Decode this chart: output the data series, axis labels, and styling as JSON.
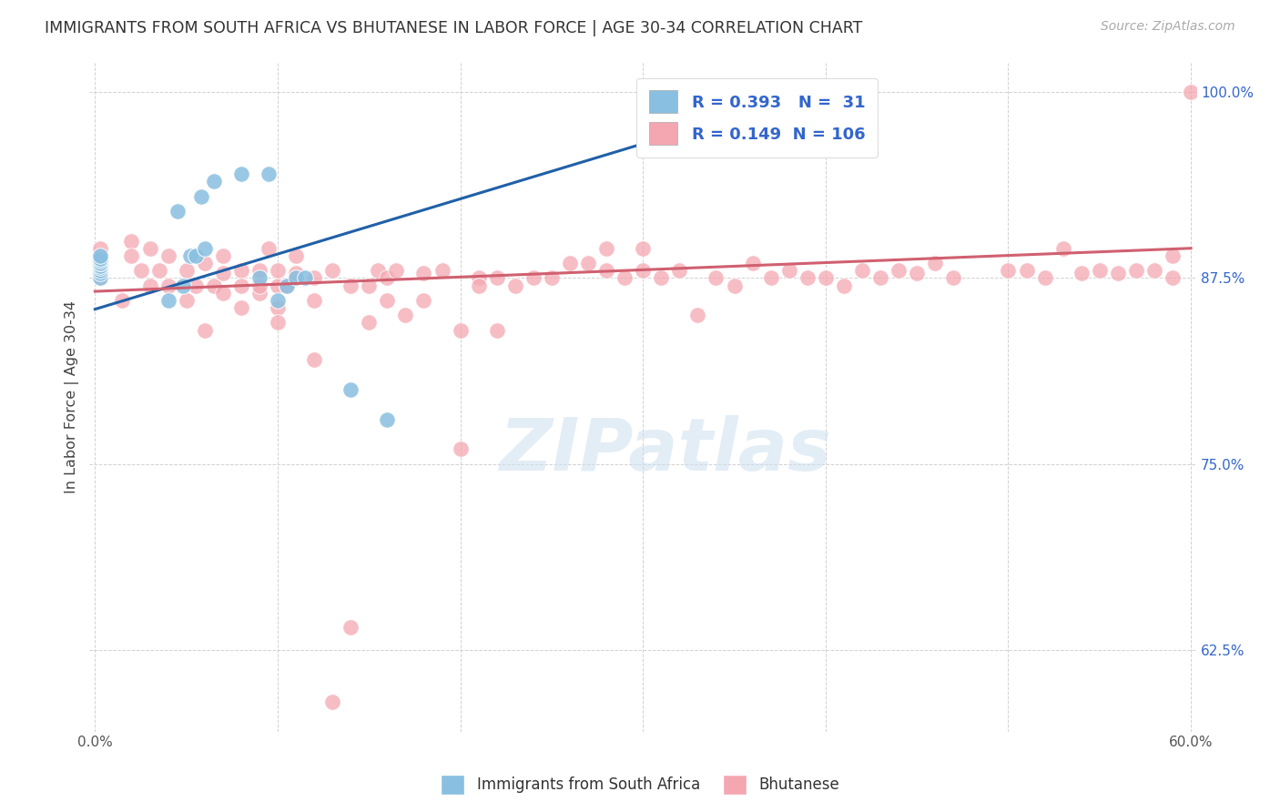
{
  "title": "IMMIGRANTS FROM SOUTH AFRICA VS BHUTANESE IN LABOR FORCE | AGE 30-34 CORRELATION CHART",
  "source_text": "Source: ZipAtlas.com",
  "ylabel": "In Labor Force | Age 30-34",
  "xlim": [
    0.0,
    0.6
  ],
  "ylim": [
    0.57,
    1.02
  ],
  "yticks": [
    0.625,
    0.75,
    0.875,
    1.0
  ],
  "ytick_labels": [
    "62.5%",
    "75.0%",
    "87.5%",
    "100.0%"
  ],
  "r_blue": 0.393,
  "n_blue": 31,
  "r_pink": 0.149,
  "n_pink": 106,
  "blue_color": "#89bfe0",
  "pink_color": "#f4a7b0",
  "trendline_blue_color": "#2060a8",
  "trendline_pink_color": "#d06070",
  "watermark": "ZIPatlas",
  "blue_x": [
    0.003,
    0.003,
    0.003,
    0.003,
    0.003,
    0.003,
    0.003,
    0.003,
    0.003,
    0.003,
    0.04,
    0.045,
    0.048,
    0.052,
    0.055,
    0.058,
    0.06,
    0.065,
    0.08,
    0.09,
    0.095,
    0.1,
    0.105,
    0.11,
    0.115,
    0.14,
    0.16,
    0.32,
    0.33,
    0.335,
    0.38
  ],
  "blue_y": [
    0.875,
    0.878,
    0.88,
    0.882,
    0.883,
    0.885,
    0.885,
    0.887,
    0.888,
    0.89,
    0.86,
    0.92,
    0.87,
    0.89,
    0.89,
    0.93,
    0.895,
    0.94,
    0.945,
    0.875,
    0.945,
    0.86,
    0.87,
    0.875,
    0.875,
    0.8,
    0.78,
    0.985,
    0.99,
    0.99,
    0.99
  ],
  "pink_x": [
    0.003,
    0.003,
    0.003,
    0.003,
    0.003,
    0.003,
    0.003,
    0.003,
    0.003,
    0.003,
    0.015,
    0.02,
    0.02,
    0.025,
    0.03,
    0.03,
    0.035,
    0.04,
    0.04,
    0.05,
    0.05,
    0.055,
    0.06,
    0.06,
    0.065,
    0.07,
    0.07,
    0.07,
    0.08,
    0.08,
    0.08,
    0.09,
    0.09,
    0.09,
    0.095,
    0.1,
    0.1,
    0.1,
    0.1,
    0.105,
    0.11,
    0.11,
    0.12,
    0.12,
    0.12,
    0.13,
    0.13,
    0.14,
    0.14,
    0.15,
    0.15,
    0.155,
    0.16,
    0.16,
    0.165,
    0.17,
    0.18,
    0.18,
    0.19,
    0.2,
    0.2,
    0.21,
    0.21,
    0.22,
    0.22,
    0.23,
    0.24,
    0.25,
    0.26,
    0.27,
    0.28,
    0.28,
    0.29,
    0.3,
    0.3,
    0.31,
    0.32,
    0.33,
    0.34,
    0.35,
    0.36,
    0.37,
    0.38,
    0.39,
    0.4,
    0.41,
    0.42,
    0.43,
    0.44,
    0.45,
    0.46,
    0.47,
    0.5,
    0.51,
    0.52,
    0.53,
    0.54,
    0.55,
    0.56,
    0.57,
    0.58,
    0.59,
    0.59,
    0.6
  ],
  "pink_y": [
    0.875,
    0.877,
    0.879,
    0.88,
    0.882,
    0.884,
    0.886,
    0.888,
    0.89,
    0.895,
    0.86,
    0.9,
    0.89,
    0.88,
    0.87,
    0.895,
    0.88,
    0.87,
    0.89,
    0.86,
    0.88,
    0.87,
    0.84,
    0.885,
    0.87,
    0.865,
    0.878,
    0.89,
    0.88,
    0.855,
    0.87,
    0.865,
    0.88,
    0.87,
    0.895,
    0.855,
    0.87,
    0.88,
    0.845,
    0.87,
    0.878,
    0.89,
    0.82,
    0.86,
    0.875,
    0.59,
    0.88,
    0.64,
    0.87,
    0.845,
    0.87,
    0.88,
    0.86,
    0.875,
    0.88,
    0.85,
    0.86,
    0.878,
    0.88,
    0.76,
    0.84,
    0.875,
    0.87,
    0.84,
    0.875,
    0.87,
    0.875,
    0.875,
    0.885,
    0.885,
    0.88,
    0.895,
    0.875,
    0.88,
    0.895,
    0.875,
    0.88,
    0.85,
    0.875,
    0.87,
    0.885,
    0.875,
    0.88,
    0.875,
    0.875,
    0.87,
    0.88,
    0.875,
    0.88,
    0.878,
    0.885,
    0.875,
    0.88,
    0.88,
    0.875,
    0.895,
    0.878,
    0.88,
    0.878,
    0.88,
    0.88,
    0.875,
    0.89,
    1.0
  ],
  "blue_trend_x": [
    0.0,
    0.38
  ],
  "blue_trend_y": [
    0.854,
    0.995
  ],
  "pink_trend_x": [
    0.0,
    0.6
  ],
  "pink_trend_y": [
    0.866,
    0.895
  ]
}
